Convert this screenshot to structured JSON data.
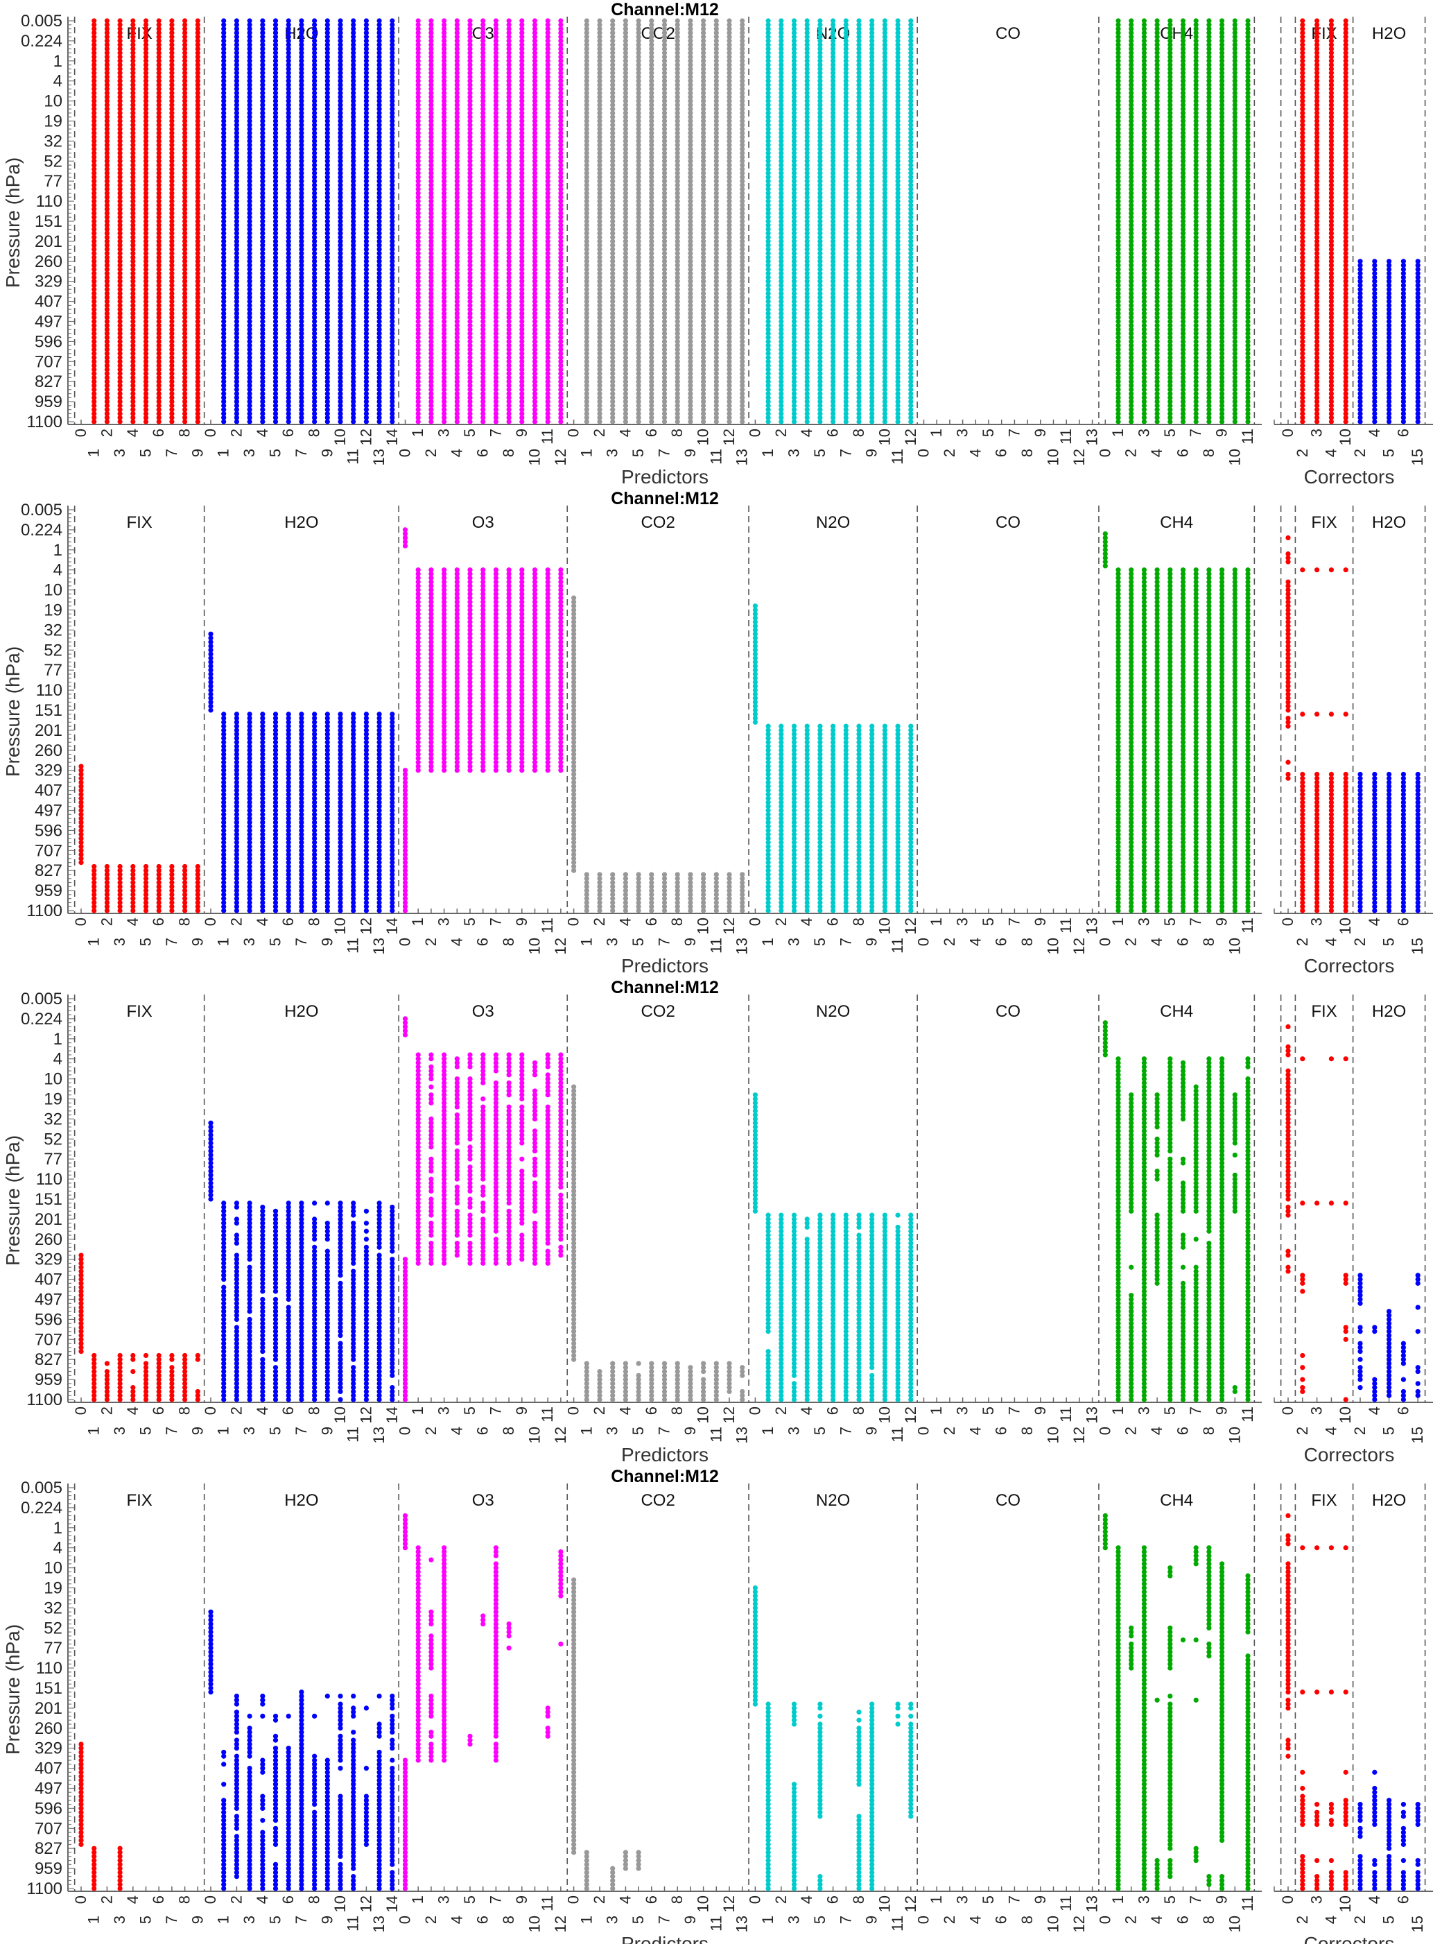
{
  "chart_data": {
    "type": "scatter",
    "title": "Channel:M12",
    "ylabel": "Pressure (hPa)",
    "xlabel_predictors": "Predictors",
    "xlabel_correctors": "Correctors",
    "y_axis": "pressure level index 0 (0.005 hPa, top) to 100 (1100 hPa, bottom), major tick every 5 levels",
    "y_tick_labels": [
      "0.005",
      "0.224",
      "1",
      "4",
      "10",
      "19",
      "32",
      "52",
      "77",
      "110",
      "151",
      "201",
      "260",
      "329",
      "407",
      "497",
      "596",
      "707",
      "827",
      "959",
      "1100"
    ],
    "predictor_groups": [
      {
        "name": "FIX",
        "color": "#ff0000",
        "ticks": [
          "0",
          "1",
          "2",
          "3",
          "4",
          "5",
          "6",
          "7",
          "8",
          "9"
        ]
      },
      {
        "name": "H2O",
        "color": "#0000ff",
        "ticks": [
          "0",
          "1",
          "2",
          "3",
          "4",
          "5",
          "6",
          "7",
          "8",
          "9",
          "10",
          "11",
          "12",
          "13",
          "14"
        ]
      },
      {
        "name": "O3",
        "color": "#ff00ff",
        "ticks": [
          "0",
          "1",
          "2",
          "3",
          "4",
          "5",
          "6",
          "7",
          "8",
          "9",
          "10",
          "11",
          "12"
        ]
      },
      {
        "name": "CO2",
        "color": "#999999",
        "ticks": [
          "0",
          "1",
          "2",
          "3",
          "4",
          "5",
          "6",
          "7",
          "8",
          "9",
          "10",
          "11",
          "12",
          "13"
        ]
      },
      {
        "name": "N2O",
        "color": "#00cccc",
        "ticks": [
          "0",
          "1",
          "2",
          "3",
          "4",
          "5",
          "6",
          "7",
          "8",
          "9",
          "10",
          "11",
          "12"
        ]
      },
      {
        "name": "CO",
        "color": "#ff8800",
        "ticks": [
          "0",
          "1",
          "2",
          "3",
          "4",
          "5",
          "6",
          "7",
          "8",
          "9",
          "10",
          "11",
          "12",
          "13"
        ]
      },
      {
        "name": "CH4",
        "color": "#00aa00",
        "ticks": [
          "0",
          "1",
          "2",
          "3",
          "4",
          "5",
          "6",
          "7",
          "8",
          "9",
          "10",
          "11"
        ]
      }
    ],
    "corrector_groups": [
      {
        "name": "",
        "color": "#ff0000",
        "ticks": [
          "0"
        ]
      },
      {
        "name": "FIX",
        "color": "#ff0000",
        "ticks": [
          "2",
          "3",
          "4",
          "10"
        ]
      },
      {
        "name": "H2O",
        "color": "#0000ff",
        "ticks": [
          "2",
          "4",
          "5",
          "6",
          "15"
        ]
      }
    ],
    "panels": [
      {
        "predictors": [
          [
            "",
            "0-100",
            "0-100",
            "0-100",
            "0-100",
            "0-100",
            "0-100",
            "0-100",
            "0-100",
            "0-100"
          ],
          [
            "",
            "0-100",
            "0-100",
            "0-100",
            "0-100",
            "0-100",
            "0-100",
            "0-100",
            "0-100",
            "0-100",
            "0-100",
            "0-100",
            "0-100",
            "0-100",
            "0-100"
          ],
          [
            "",
            "0-100",
            "0-100",
            "0-100",
            "0-100",
            "0-100",
            "0-100",
            "0-100",
            "0-100",
            "0-100",
            "0-100",
            "0-100",
            "0-100"
          ],
          [
            "",
            "0-100",
            "0-100",
            "0-100",
            "0-100",
            "0-100",
            "0-100",
            "0-100",
            "0-100",
            "0-100",
            "0-100",
            "0-100",
            "0-100",
            "0-100"
          ],
          [
            "",
            "0-100",
            "0-100",
            "0-100",
            "0-100",
            "0-100",
            "0-100",
            "0-100",
            "0-100",
            "0-100",
            "0-100",
            "0-100",
            "0-100"
          ],
          [
            "",
            "",
            "",
            "",
            "",
            "",
            "",
            "",
            "",
            "",
            "",
            "",
            "",
            ""
          ],
          [
            "",
            "0-100",
            "0-100",
            "0-100",
            "0-100",
            "0-100",
            "0-100",
            "0-100",
            "0-100",
            "0-100",
            "0-100",
            "0-100"
          ]
        ],
        "correctors": [
          [
            ""
          ],
          [
            "0-100",
            "0-100",
            "0-100",
            "0-100"
          ],
          [
            "60-100",
            "60-100",
            "60-100",
            "60-100",
            "60-100"
          ]
        ]
      },
      {
        "predictors": [
          [
            "64-88",
            "89-100",
            "89-100",
            "89-100",
            "89-100",
            "89-100",
            "89-100",
            "89-100",
            "89-100",
            "89-100"
          ],
          [
            "31-50",
            "51-100",
            "51-100",
            "51-100",
            "51-100",
            "51-100",
            "51-100",
            "51-100",
            "51-100",
            "51-100",
            "51-100",
            "51-100",
            "51-100",
            "51-100",
            "51-100"
          ],
          [
            "5-9,65-100",
            "15-65",
            "15-65",
            "15-65",
            "15-65",
            "15-65",
            "15-65",
            "15-65",
            "15-65",
            "15-65",
            "15-65",
            "15-65",
            "15-65"
          ],
          [
            "22-90",
            "91-100",
            "91-100",
            "91-100",
            "91-100",
            "91-100",
            "91-100",
            "91-100",
            "91-100",
            "91-100",
            "91-100",
            "91-100",
            "91-100",
            "91-100"
          ],
          [
            "24-53",
            "54-100",
            "54-100",
            "54-100",
            "54-100",
            "54-100",
            "54-100",
            "54-100",
            "54-100",
            "54-100",
            "54-100",
            "54-100",
            "54-100"
          ],
          [
            "",
            "",
            "",
            "",
            "",
            "",
            "",
            "",
            "",
            "",
            "",
            "",
            "",
            ""
          ],
          [
            "6-14",
            "15-100",
            "15-100",
            "15-100",
            "15-100",
            "15-100",
            "15-100",
            "15-100",
            "15-100",
            "15-100",
            "15-100",
            "15-100"
          ]
        ],
        "correctors": [
          [
            "7,11-13,18-50,52-54,63,66-67"
          ],
          [
            "15,51,66-100",
            "15,51,66-100",
            "15,51,66-100",
            "15,51,66-100"
          ],
          [
            "66-100",
            "66-100",
            "66-100",
            "66-100",
            "66-100"
          ]
        ]
      },
      {
        "predictors": [
          [
            "64-88",
            "89-100",
            "91,93-100",
            "89-100",
            "89-90,93,97-100",
            "89,91-100",
            "89-100",
            "89-90,92-100",
            "89-100",
            "89-90,98-100"
          ],
          [
            "31-50",
            "51-70,72-100",
            "51-52,55-56,59-61,64-80,82-100",
            "51-65,67-78,80-100",
            "52-73,75-88,90-100",
            "53-73,75-90,92-100",
            "51-75,77-100",
            "51-100",
            "51,55-60,62-100",
            "51,56-60,63-100",
            "51-69,71-84,86-98,100",
            "51-54,56-66,68-90,92-100",
            "53,56,58,60,62-100",
            "51-62,64-100",
            "52-63,65-94,97-100"
          ],
          [
            "5-9,65-100",
            "14-66",
            "14-15,17-20,22,24-26,30-37,40-43,45-48,50-54,56-59,61-66",
            "14-66",
            "15-17,20-27,29-36,38-45,47-51,53-59,61-64",
            "14-17,20-35,37-40,42-48,50-52,54-59,61-66",
            "14-21,25,27-45,47-49,51-53,55-66",
            "14-18,21-58,60-66",
            "14-19,21-24,27-51,53-66",
            "14-25,27-36,40,43-56,59-65",
            "16-19,23-30,33-38,40-44,46-53,56-66",
            "14-17,19-24,27-61,63-66",
            "14-47,49-60,62-64"
          ],
          [
            "22-90",
            "91-100",
            "93-100",
            "91-100",
            "91-100",
            "91,94-100",
            "91-100",
            "91-100",
            "91-100",
            "92-100",
            "91-93,95-100",
            "91-100",
            "91-98",
            "92-94,98-100"
          ],
          [
            "24-53",
            "54-83,88-100",
            "54-100",
            "54-94,96-100",
            "55-57,60-100",
            "54-100",
            "54-100",
            "54-100",
            "54-57,59-100",
            "54-92,94-100",
            "54-100",
            "54,57-100",
            "54-100"
          ],
          [
            "",
            "",
            "",
            "",
            "",
            "",
            "",
            "",
            "",
            "",
            "",
            "",
            "",
            ""
          ],
          [
            "6-14",
            "15-100",
            "24-53,67,74-100",
            "15-100",
            "24-32,35-39,43-45,54-71",
            "15-38,40-100",
            "16-30,40-41,46-53,59-62,67,71-100",
            "22-53,60,67-100",
            "15-58,61-100",
            "15-100",
            "24-36,39,44-53,97-98",
            "15-17,20-100"
          ]
        ],
        "correctors": [
          [
            "7,12-14,18-50,52-54,63-64,67-68"
          ],
          [
            "15,51,69-71,73,89,92,95,97-98",
            "51",
            "15,51",
            "15,51,69-71,82-83,85,100"
          ],
          [
            "69-76,82-83,86-88,90,92-95,97",
            "82-83,95-100",
            "78-99",
            "86-91,95,98-100",
            "69-71,77,83,92-93,96,98-99"
          ]
        ]
      },
      {
        "predictors": [
          [
            "64-89",
            "90-100",
            "",
            "90-100",
            "",
            "",
            "",
            "",
            "",
            ""
          ],
          [
            "31-51",
            "66-67,69,74,78-100",
            "52-54,56-61,63-65,67-80,82-85,87-97",
            "57,60-67,70-100",
            "52-54,57,68-71,77-80,83,86-100",
            "57-58,62-63,65-83,85-89,94-100",
            "57,65-100",
            "51-100",
            "57,67-79,81-100",
            "52,68-100",
            "52,54-60,62-68,70,77-92,94-100",
            "52,55-57,61,63-95,97-100",
            "55,70,77-89",
            "52,59-62,66-100",
            "52-55,57-61,63-65,68,70-94,96-100"
          ],
          [
            "7-15,68-100",
            "15-68",
            "18,31-34,37-45,52-57,61-62,64-68",
            "15-68",
            "",
            "62-64",
            "32-34",
            "15-17,19-62,64-68",
            "34-37,40",
            "",
            "",
            "55-57,60-62",
            "16-27,39"
          ],
          [
            "23-91",
            "91-100",
            "",
            "95-100",
            "91-95",
            "91-95",
            "",
            "",
            "",
            "",
            "",
            "",
            "",
            ""
          ],
          [
            "25-54",
            "54-100",
            "",
            "54-59,74-100",
            "",
            "54-55,57,59-82,97-100",
            "",
            "",
            "56,58,60-74,82-100",
            "54-100",
            "",
            "54-55,57,59",
            "54-55,57,59-82"
          ],
          [
            "",
            "",
            "",
            "",
            "",
            "",
            "",
            "",
            "",
            "",
            "",
            "",
            "",
            ""
          ],
          [
            "7-15",
            "15-100",
            "35-37,39-45",
            "15-100",
            "53,93-100",
            "20-22,35-45,52,54-90,93-97",
            "38",
            "15-19,38,53,90-93",
            "15-35,39-42,97-99",
            "19-52,53-88,97-100",
            "",
            "22-36,42-100"
          ]
        ],
        "correctors": [
          [
            "7,12-14,19-51,53-55,63-65,67"
          ],
          [
            "15,51,71,75,77-84,92-100",
            "15,51,79,81-84,93,97-100",
            "15,51,79-81,83-84,93,96-100",
            "15,51,71,78-84,96-100"
          ],
          [
            "79-83,85-87,92-100",
            "71,75-84,93-94,96-100",
            "78-90,92-100",
            "79,81-82,85-89,93,96-100",
            "79-84,93-94,96-100"
          ]
        ]
      }
    ]
  }
}
